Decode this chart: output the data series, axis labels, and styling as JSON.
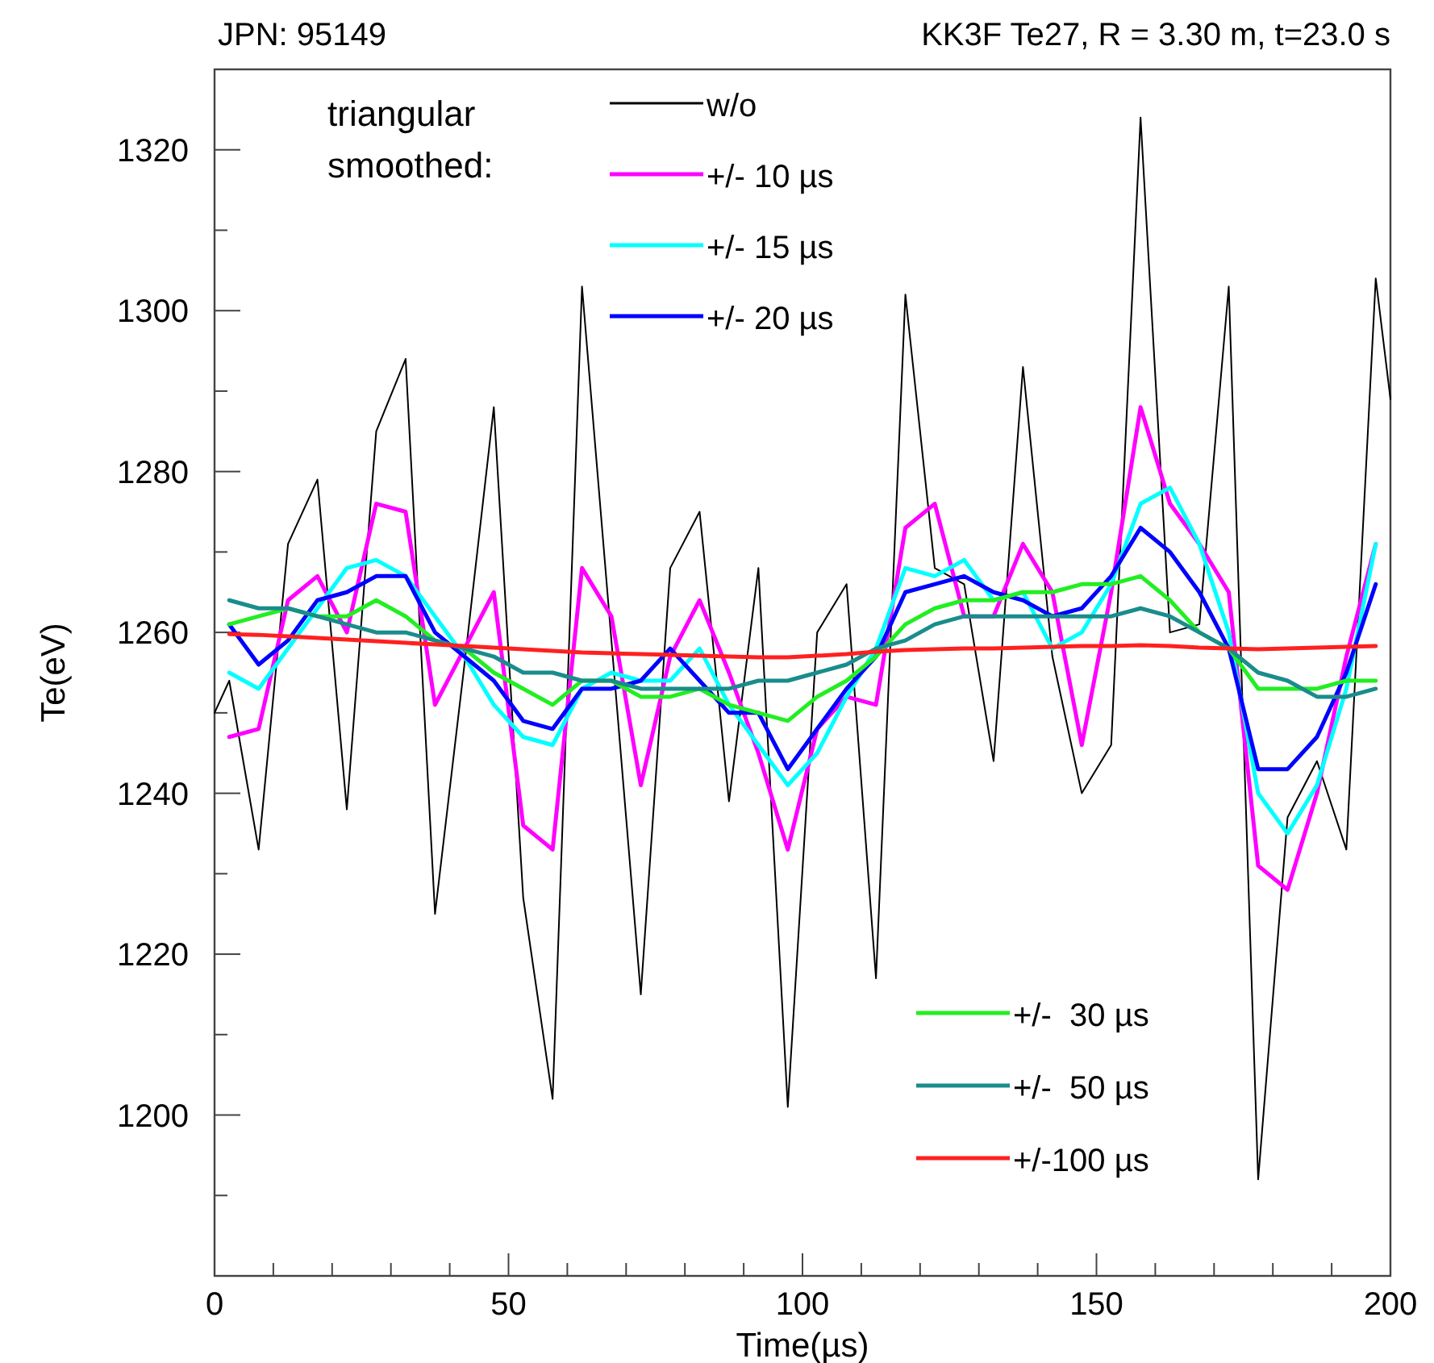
{
  "chart_data": {
    "type": "line",
    "title": "JPN: 95149",
    "subtitle": "KK3F Te27, R = 3.30 m, t=23.0 s",
    "xlabel": "Time(µs)",
    "ylabel": "Te(eV)",
    "legend_title": "triangular smoothed:",
    "x": [
      2.5,
      7.5,
      12.5,
      17.5,
      22.5,
      27.5,
      32.5,
      37.5,
      42.5,
      47.5,
      52.5,
      57.5,
      62.5,
      67.5,
      72.5,
      77.5,
      82.5,
      87.5,
      92.5,
      97.5,
      102.5,
      107.5,
      112.5,
      117.5,
      122.5,
      127.5,
      132.5,
      137.5,
      142.5,
      147.5,
      152.5,
      157.5,
      162.5,
      167.5,
      172.5,
      177.5,
      182.5,
      187.5,
      192.5,
      197.5
    ],
    "series": [
      {
        "name": "w/o",
        "color": "#000000",
        "x": [
          0,
          2.5,
          7.5,
          12.5,
          17.5,
          22.5,
          27.5,
          32.5,
          37.5,
          42.5,
          47.5,
          52.5,
          57.5,
          62.5,
          67.5,
          72.5,
          77.5,
          82.5,
          87.5,
          92.5,
          97.5,
          102.5,
          107.5,
          112.5,
          117.5,
          122.5,
          127.5,
          132.5,
          137.5,
          142.5,
          147.5,
          152.5,
          157.5,
          162.5,
          167.5,
          172.5,
          177.5,
          182.5,
          187.5,
          192.5,
          197.5,
          200
        ],
        "values": [
          1250,
          1254,
          1233,
          1271,
          1279,
          1238,
          1285,
          1294,
          1225,
          1256,
          1288,
          1227,
          1202,
          1303,
          1259,
          1215,
          1268,
          1275,
          1239,
          1268,
          1201,
          1260,
          1266,
          1217,
          1302,
          1268,
          1266,
          1244,
          1293,
          1257,
          1240,
          1246,
          1324,
          1260,
          1261,
          1303,
          1192,
          1237,
          1244,
          1233,
          1304,
          1289
        ]
      },
      {
        "name": "+/- 10 µs",
        "color": "#ff00ff",
        "values": [
          1247,
          1248,
          1264,
          1267,
          1260,
          1276,
          1275,
          1251,
          1258,
          1265,
          1236,
          1233,
          1268,
          1262,
          1241,
          1257,
          1264,
          1255,
          1245,
          1233,
          1248,
          1252,
          1251,
          1273,
          1276,
          1262,
          1262,
          1271,
          1265,
          1246,
          1265,
          1288,
          1276,
          1271,
          1265,
          1231,
          1228,
          1240,
          1257,
          1271
        ]
      },
      {
        "name": "+/- 15 µs",
        "color": "#00ffff",
        "values": [
          1255,
          1253,
          1258,
          1263,
          1268,
          1269,
          1267,
          1262,
          1257,
          1251,
          1247,
          1246,
          1253,
          1255,
          1254,
          1254,
          1258,
          1251,
          1246,
          1241,
          1245,
          1252,
          1258,
          1268,
          1267,
          1269,
          1264,
          1265,
          1258,
          1260,
          1266,
          1276,
          1278,
          1271,
          1260,
          1240,
          1235,
          1241,
          1253,
          1271
        ]
      },
      {
        "name": "+/- 20 µs",
        "color": "#0000ff",
        "values": [
          1261,
          1256,
          1259,
          1264,
          1265,
          1267,
          1267,
          1260,
          1257,
          1254,
          1249,
          1248,
          1253,
          1253,
          1254,
          1258,
          1254,
          1250,
          1250,
          1243,
          1248,
          1253,
          1257,
          1265,
          1266,
          1267,
          1265,
          1264,
          1262,
          1263,
          1267,
          1273,
          1270,
          1265,
          1258,
          1243,
          1243,
          1247,
          1255,
          1266
        ]
      },
      {
        "name": "+/-  30 µs",
        "color": "#22ee22",
        "values": [
          1261,
          1262,
          1263,
          1262,
          1262,
          1264,
          1262,
          1259,
          1258,
          1255,
          1253,
          1251,
          1254,
          1254,
          1252,
          1252,
          1253,
          1251,
          1250,
          1249,
          1252,
          1254,
          1257,
          1261,
          1263,
          1264,
          1264,
          1265,
          1265,
          1266,
          1266,
          1267,
          1264,
          1260,
          1258,
          1253,
          1253,
          1253,
          1254,
          1254
        ]
      },
      {
        "name": "+/-  50 µs",
        "color": "#1a8c8c",
        "values": [
          1264,
          1263,
          1263,
          1262,
          1261,
          1260,
          1260,
          1259,
          1258,
          1257,
          1255,
          1255,
          1254,
          1254,
          1253,
          1253,
          1253,
          1253,
          1254,
          1254,
          1255,
          1256,
          1258,
          1259,
          1261,
          1262,
          1262,
          1262,
          1262,
          1262,
          1262,
          1263,
          1262,
          1260,
          1258,
          1255,
          1254,
          1252,
          1252,
          1253
        ]
      },
      {
        "name": "+/-100 µs",
        "color": "#ff2020",
        "values": [
          1259.8,
          1259.7,
          1259.5,
          1259.3,
          1259.1,
          1258.9,
          1258.7,
          1258.5,
          1258.3,
          1258.1,
          1257.9,
          1257.7,
          1257.5,
          1257.4,
          1257.3,
          1257.2,
          1257.1,
          1257,
          1256.9,
          1256.9,
          1257.1,
          1257.3,
          1257.6,
          1257.8,
          1257.9,
          1258,
          1258,
          1258.1,
          1258.2,
          1258.3,
          1258.3,
          1258.4,
          1258.3,
          1258.1,
          1258,
          1257.9,
          1258,
          1258.1,
          1258.2,
          1258.3
        ]
      }
    ],
    "xlim": [
      0,
      200
    ],
    "ylim": [
      1180,
      1330
    ],
    "xticks": [
      0,
      {
        "value": 10,
        "label": null
      },
      {
        "value": 20,
        "label": null
      },
      {
        "value": 30,
        "label": null
      },
      {
        "value": 40,
        "label": null
      },
      50,
      {
        "value": 60,
        "label": null
      },
      {
        "value": 70,
        "label": null
      },
      {
        "value": 80,
        "label": null
      },
      {
        "value": 90,
        "label": null
      },
      100,
      {
        "value": 110,
        "label": null
      },
      {
        "value": 120,
        "label": null
      },
      {
        "value": 130,
        "label": null
      },
      {
        "value": 140,
        "label": null
      },
      150,
      {
        "value": 160,
        "label": null
      },
      {
        "value": 170,
        "label": null
      },
      {
        "value": 180,
        "label": null
      },
      {
        "value": 190,
        "label": null
      },
      200
    ],
    "yticks": [
      {
        "value": 1180,
        "label": null
      },
      {
        "value": 1190,
        "label": null
      },
      1200,
      {
        "value": 1210,
        "label": null
      },
      1220,
      {
        "value": 1230,
        "label": null
      },
      1240,
      {
        "value": 1250,
        "label": null
      },
      1260,
      {
        "value": 1270,
        "label": null
      },
      1280,
      {
        "value": 1290,
        "label": null
      },
      1300,
      {
        "value": 1310,
        "label": null
      },
      1320,
      {
        "value": 1330,
        "label": null
      }
    ],
    "legend": "right",
    "grid": false,
    "marker": "none",
    "line_style": "solid"
  }
}
